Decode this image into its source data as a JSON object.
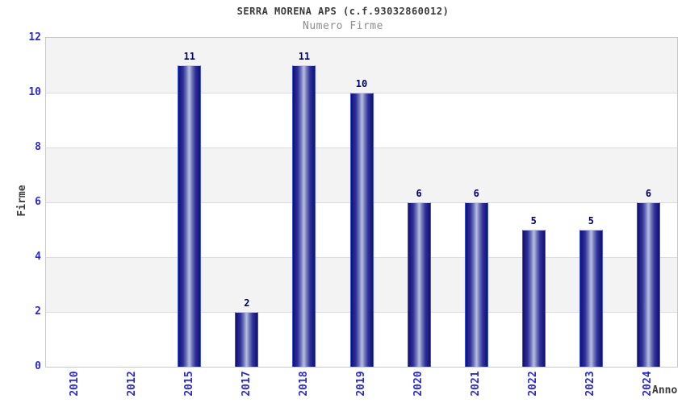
{
  "chart_data": {
    "type": "bar",
    "title": "SERRA MORENA APS (c.f.93032860012)",
    "subtitle": "Numero Firme",
    "xlabel": "Anno",
    "ylabel": "Firme",
    "categories": [
      "2010",
      "2012",
      "2015",
      "2017",
      "2018",
      "2019",
      "2020",
      "2021",
      "2022",
      "2023",
      "2024"
    ],
    "values": [
      0,
      0,
      11,
      2,
      11,
      10,
      6,
      6,
      5,
      5,
      6
    ],
    "ylim": [
      0,
      12
    ],
    "yticks": [
      0,
      2,
      4,
      6,
      8,
      10,
      12
    ],
    "legend": "none",
    "grid": "horizontal gridlines every 2 units with alternating gray/white background bands",
    "colors": {
      "bar_edge_dark": "#12126b",
      "bar_center_light": "#b6bdde",
      "bar_top_border": "#a6d8f5",
      "bar_side_border": "#3d55dd",
      "tick_label": "#2a2ad0",
      "value_label": "#00006e",
      "axis_title": "#3c3c3c",
      "title": "#3a3a3a",
      "subtitle": "#8d8d8d",
      "band_gray": "#f3f3f3",
      "band_white": "#ffffff",
      "gridline": "#dcdcdc",
      "plot_border": "#c9c9c9"
    }
  }
}
